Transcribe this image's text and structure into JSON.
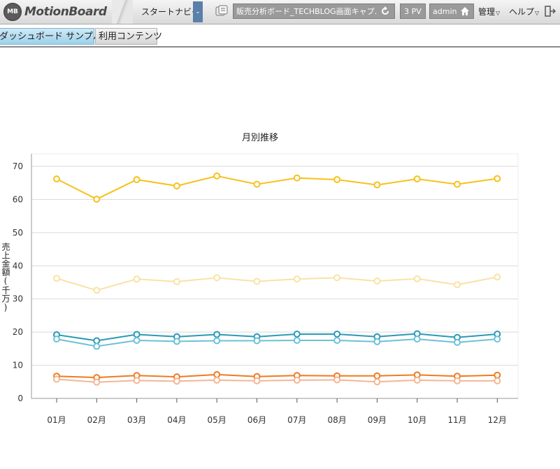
{
  "app": {
    "logo_badge": "MB",
    "logo_text": "MotionBoard"
  },
  "header": {
    "start_nav": "スタートナビ",
    "board_name": "販売分析ボード_TECHBLOG画面キャプ...",
    "pv_count": "3 PV",
    "user": "admin",
    "admin_menu": "管理",
    "help_menu": "ヘルプ"
  },
  "tabs": [
    {
      "label": "ダッシュボード サンプル",
      "active": true
    },
    {
      "label": "利用コンテンツ",
      "active": false
    }
  ],
  "icons": {
    "nav_toggle": "double-chevron-down-icon",
    "board": "board-list-icon",
    "reload": "reload-icon",
    "home": "home-icon",
    "logout": "logout-icon"
  },
  "colors": {
    "series_1": "#f5c21b",
    "series_2": "#f8e2a6",
    "series_3": "#2a9ab5",
    "series_4": "#6cc1d6",
    "series_5": "#ee7b22",
    "series_6": "#f6b593",
    "active_tab": "#9cd1ea"
  },
  "chart_data": {
    "type": "line",
    "title": "月別推移",
    "ylabel": "売上金額(千万)",
    "xlabel": "",
    "ylim": [
      0,
      70
    ],
    "yticks": [
      0,
      10,
      20,
      30,
      40,
      50,
      60,
      70
    ],
    "grid": true,
    "categories": [
      "01月",
      "02月",
      "03月",
      "04月",
      "05月",
      "06月",
      "07月",
      "08月",
      "09月",
      "10月",
      "11月",
      "12月"
    ],
    "series": [
      {
        "values": [
          66.2,
          60.1,
          66.0,
          64.1,
          67.1,
          64.6,
          66.5,
          66.0,
          64.4,
          66.2,
          64.6,
          66.3
        ]
      },
      {
        "values": [
          36.2,
          32.6,
          36.0,
          35.2,
          36.4,
          35.3,
          36.0,
          36.4,
          35.4,
          36.1,
          34.3,
          36.6
        ]
      },
      {
        "values": [
          19.2,
          17.4,
          19.3,
          18.6,
          19.3,
          18.6,
          19.4,
          19.4,
          18.6,
          19.5,
          18.4,
          19.4
        ]
      },
      {
        "values": [
          17.9,
          15.7,
          17.5,
          17.2,
          17.4,
          17.4,
          17.5,
          17.5,
          17.1,
          17.9,
          16.9,
          17.9
        ]
      },
      {
        "values": [
          6.7,
          6.3,
          6.9,
          6.5,
          7.2,
          6.6,
          6.9,
          6.8,
          6.8,
          7.1,
          6.7,
          7.0
        ]
      },
      {
        "values": [
          5.8,
          4.9,
          5.4,
          5.2,
          5.5,
          5.3,
          5.5,
          5.6,
          5.0,
          5.5,
          5.3,
          5.3
        ]
      }
    ]
  }
}
